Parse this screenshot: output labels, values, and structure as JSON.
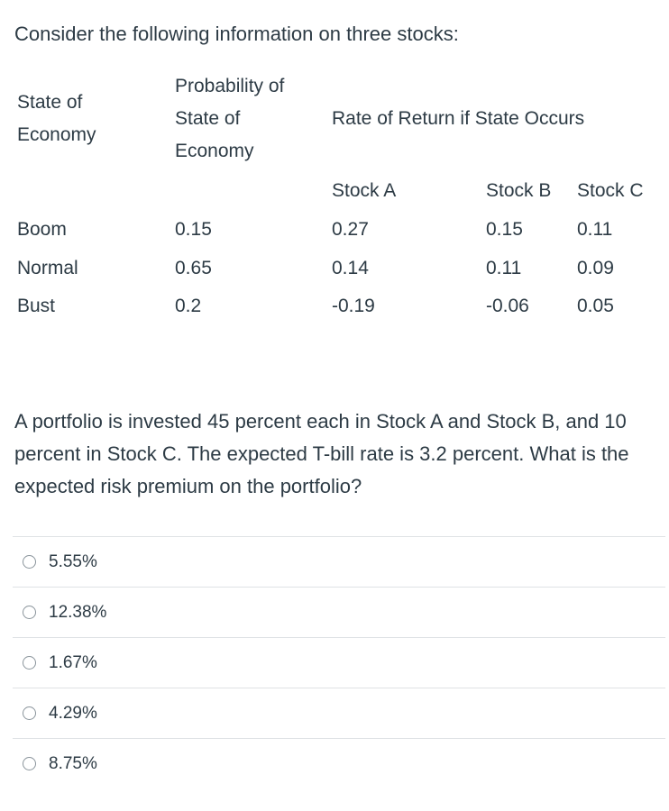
{
  "intro": "Consider the following information on three stocks:",
  "table": {
    "header_state": [
      "State of",
      "Economy"
    ],
    "header_probability": [
      "Probability of",
      "State of",
      "Economy"
    ],
    "header_rate": "Rate of Return if State Occurs",
    "stock_headers": [
      "Stock A",
      "Stock B",
      "Stock C"
    ],
    "rows": [
      {
        "state": "Boom",
        "probability": "0.15",
        "a": "0.27",
        "b": "0.15",
        "c": "0.11"
      },
      {
        "state": "Normal",
        "probability": "0.65",
        "a": "0.14",
        "b": "0.11",
        "c": "0.09"
      },
      {
        "state": "Bust",
        "probability": "0.2",
        "a": "-0.19",
        "b": "-0.06",
        "c": "0.05"
      }
    ]
  },
  "question": "A portfolio is invested 45 percent each in Stock A and Stock B, and 10 percent in Stock C. The expected T-bill rate is 3.2 percent. What is the expected risk premium on the portfolio?",
  "answers": [
    "5.55%",
    "12.38%",
    "1.67%",
    "4.29%",
    "8.75%"
  ]
}
